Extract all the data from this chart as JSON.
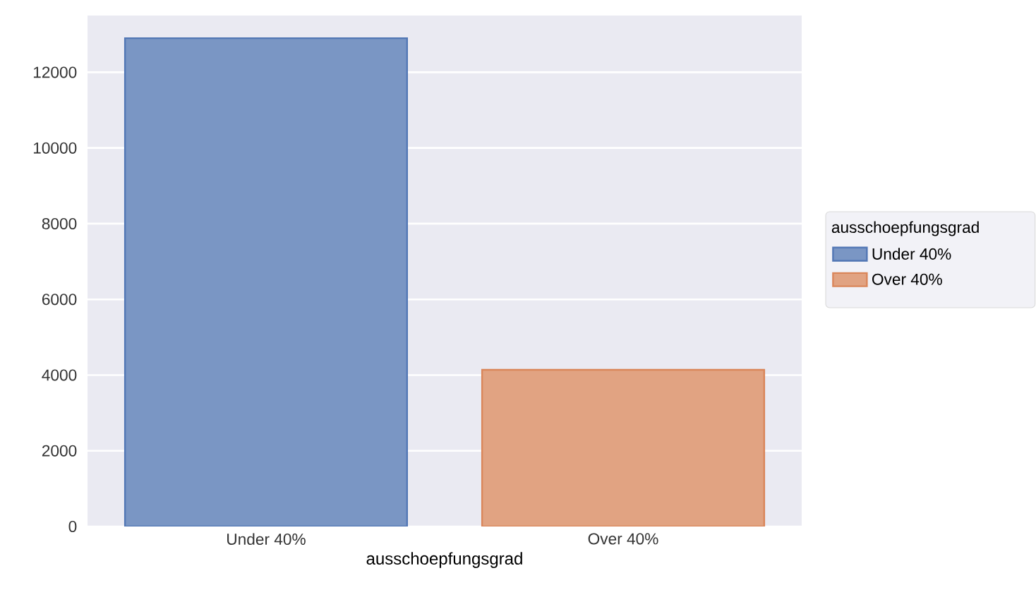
{
  "chart_data": {
    "type": "bar",
    "categories": [
      "Under 40%",
      "Over 40%"
    ],
    "series": [
      {
        "name": "Under 40%",
        "color": "#7a96c4",
        "values": [
          12900,
          null
        ]
      },
      {
        "name": "Over 40%",
        "color": "#e1a382",
        "values": [
          null,
          4140
        ]
      }
    ],
    "xlabel": "ausschoepfungsgrad",
    "legend_title": "ausschoepfungsgrad",
    "ylim": [
      0,
      13500
    ],
    "yticks": [
      0,
      2000,
      4000,
      6000,
      8000,
      10000,
      12000
    ],
    "grid": "y",
    "legend": "right"
  }
}
